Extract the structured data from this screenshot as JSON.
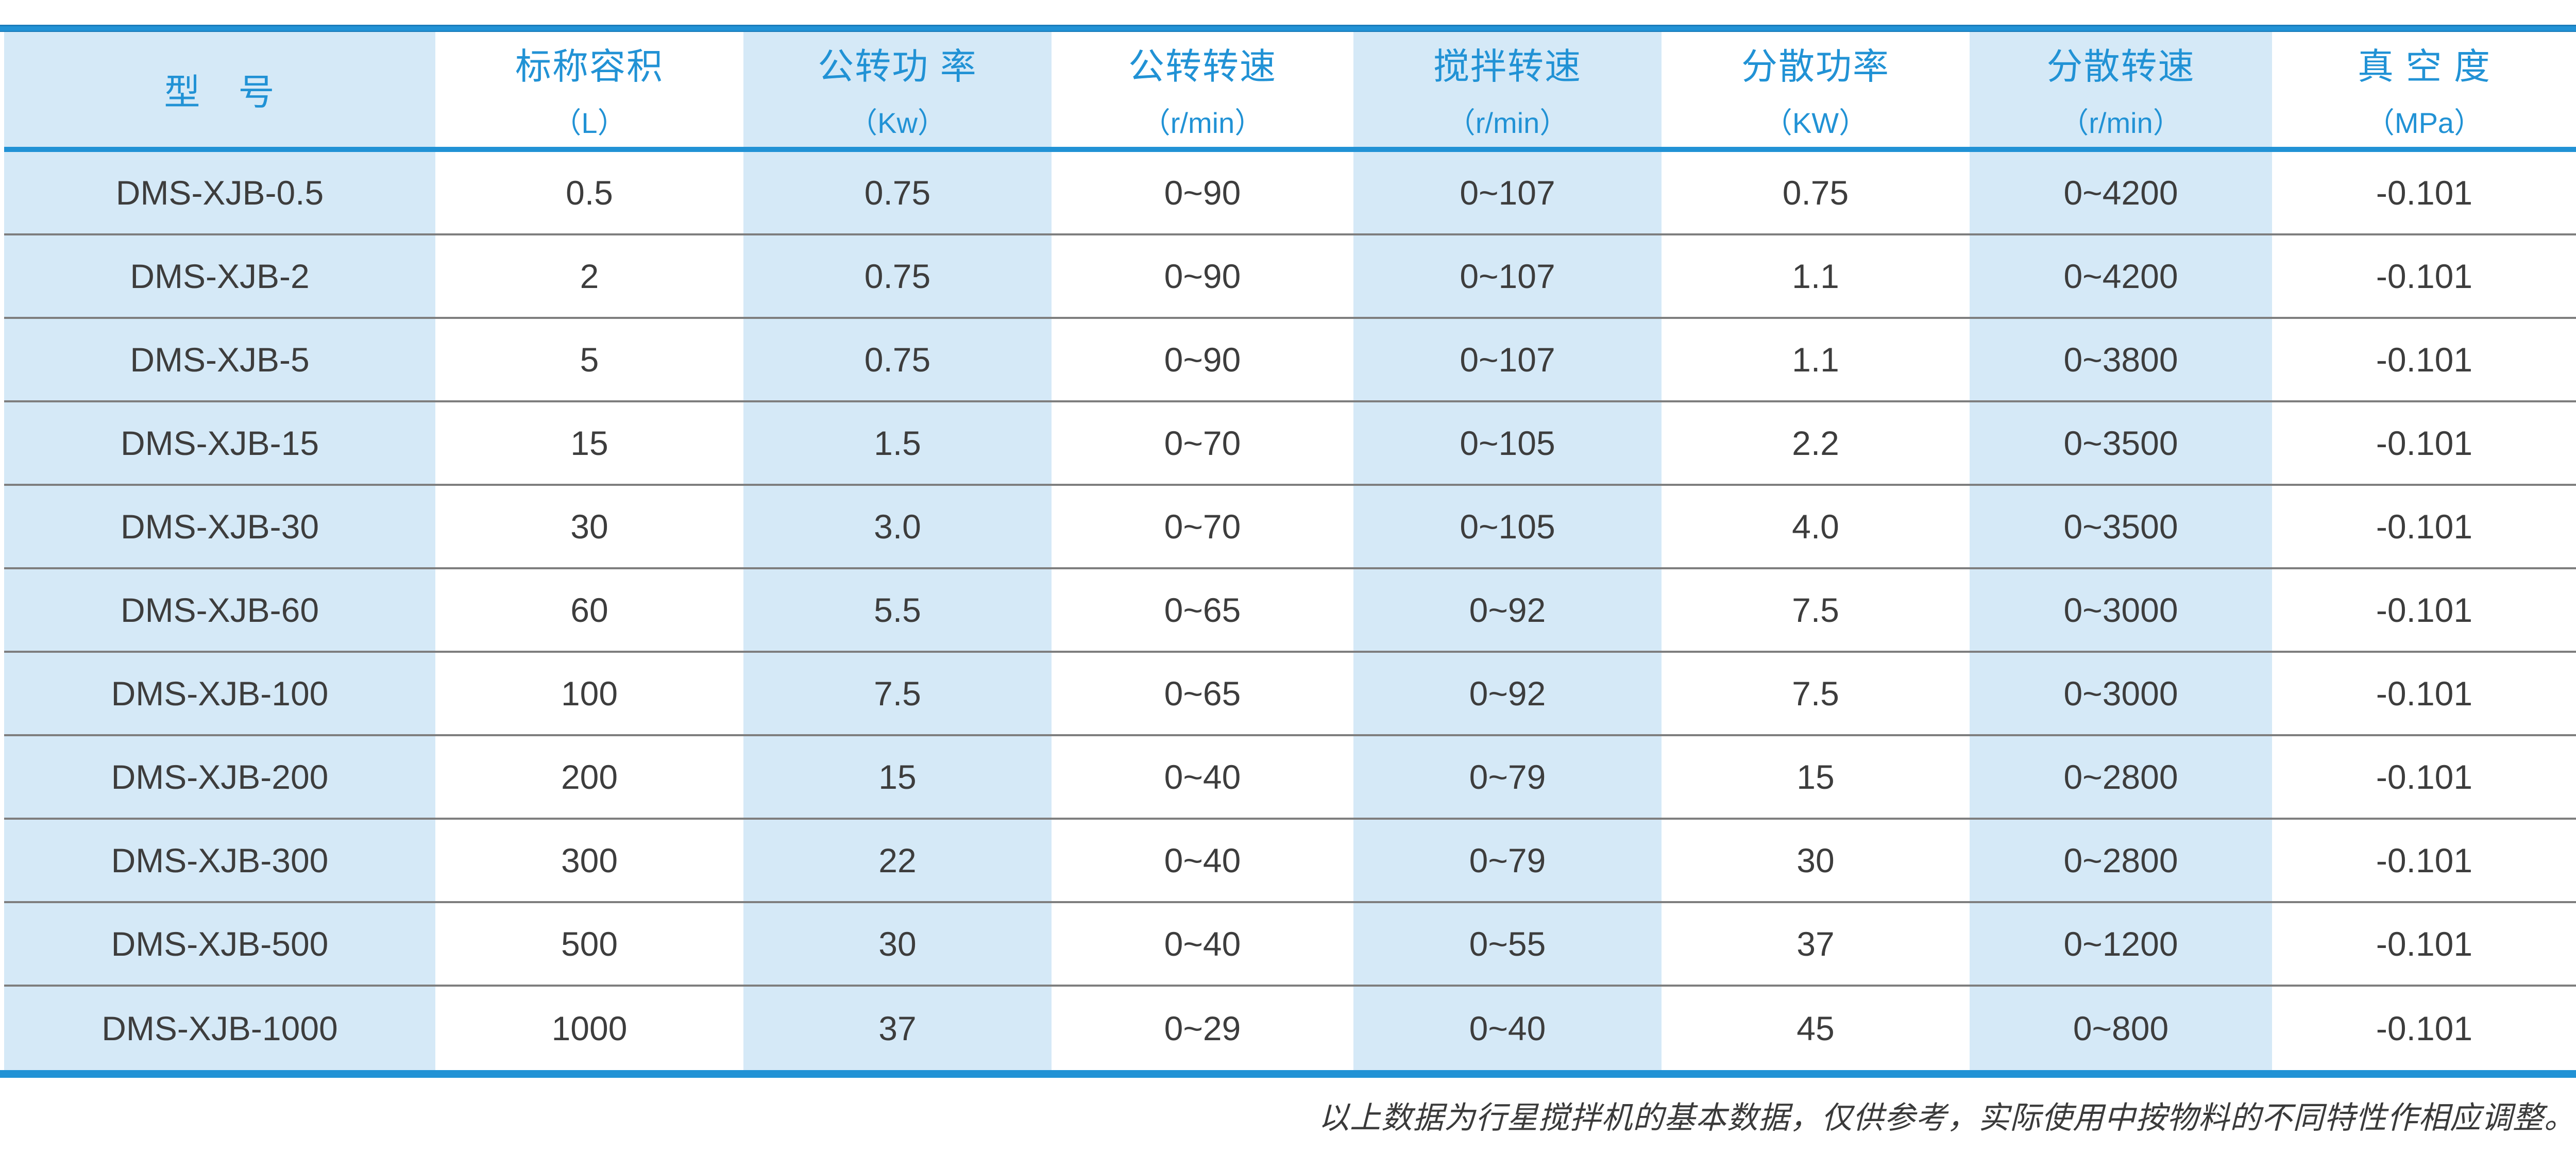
{
  "colors": {
    "accent_blue": "#2192d5",
    "shaded_cell_blue": "#d5e9f7",
    "header_text_blue": "#2192d5",
    "body_text_gray": "#3d3d3d",
    "row_separator_gray": "#7e7e7e"
  },
  "table": {
    "columns": [
      {
        "title": "型　号",
        "unit": "",
        "shaded": true
      },
      {
        "title": "标称容积",
        "unit": "（L）",
        "shaded": false
      },
      {
        "title": "公转功 率",
        "unit": "（Kw）",
        "shaded": true
      },
      {
        "title": "公转转速",
        "unit": "（r/min）",
        "shaded": false
      },
      {
        "title": "搅拌转速",
        "unit": "（r/min）",
        "shaded": true
      },
      {
        "title": "分散功率",
        "unit": "（KW）",
        "shaded": false
      },
      {
        "title": "分散转速",
        "unit": "（r/min）",
        "shaded": true
      },
      {
        "title": "真 空 度",
        "unit": "（MPa）",
        "shaded": false
      }
    ],
    "rows": [
      [
        "DMS-XJB-0.5",
        "0.5",
        "0.75",
        "0~90",
        "0~107",
        "0.75",
        "0~4200",
        "-0.101"
      ],
      [
        "DMS-XJB-2",
        "2",
        "0.75",
        "0~90",
        "0~107",
        "1.1",
        "0~4200",
        "-0.101"
      ],
      [
        "DMS-XJB-5",
        "5",
        "0.75",
        "0~90",
        "0~107",
        "1.1",
        "0~3800",
        "-0.101"
      ],
      [
        "DMS-XJB-15",
        "15",
        "1.5",
        "0~70",
        "0~105",
        "2.2",
        "0~3500",
        "-0.101"
      ],
      [
        "DMS-XJB-30",
        "30",
        "3.0",
        "0~70",
        "0~105",
        "4.0",
        "0~3500",
        "-0.101"
      ],
      [
        "DMS-XJB-60",
        "60",
        "5.5",
        "0~65",
        "0~92",
        "7.5",
        "0~3000",
        "-0.101"
      ],
      [
        "DMS-XJB-100",
        "100",
        "7.5",
        "0~65",
        "0~92",
        "7.5",
        "0~3000",
        "-0.101"
      ],
      [
        "DMS-XJB-200",
        "200",
        "15",
        "0~40",
        "0~79",
        "15",
        "0~2800",
        "-0.101"
      ],
      [
        "DMS-XJB-300",
        "300",
        "22",
        "0~40",
        "0~79",
        "30",
        "0~2800",
        "-0.101"
      ],
      [
        "DMS-XJB-500",
        "500",
        "30",
        "0~40",
        "0~55",
        "37",
        "0~1200",
        "-0.101"
      ],
      [
        "DMS-XJB-1000",
        "1000",
        "37",
        "0~29",
        "0~40",
        "45",
        "0~800",
        "-0.101"
      ]
    ]
  },
  "footer": {
    "note": "以上数据为行星搅拌机的基本数据，仅供参考，实际使用中按物料的不同特性作相应调整。"
  }
}
